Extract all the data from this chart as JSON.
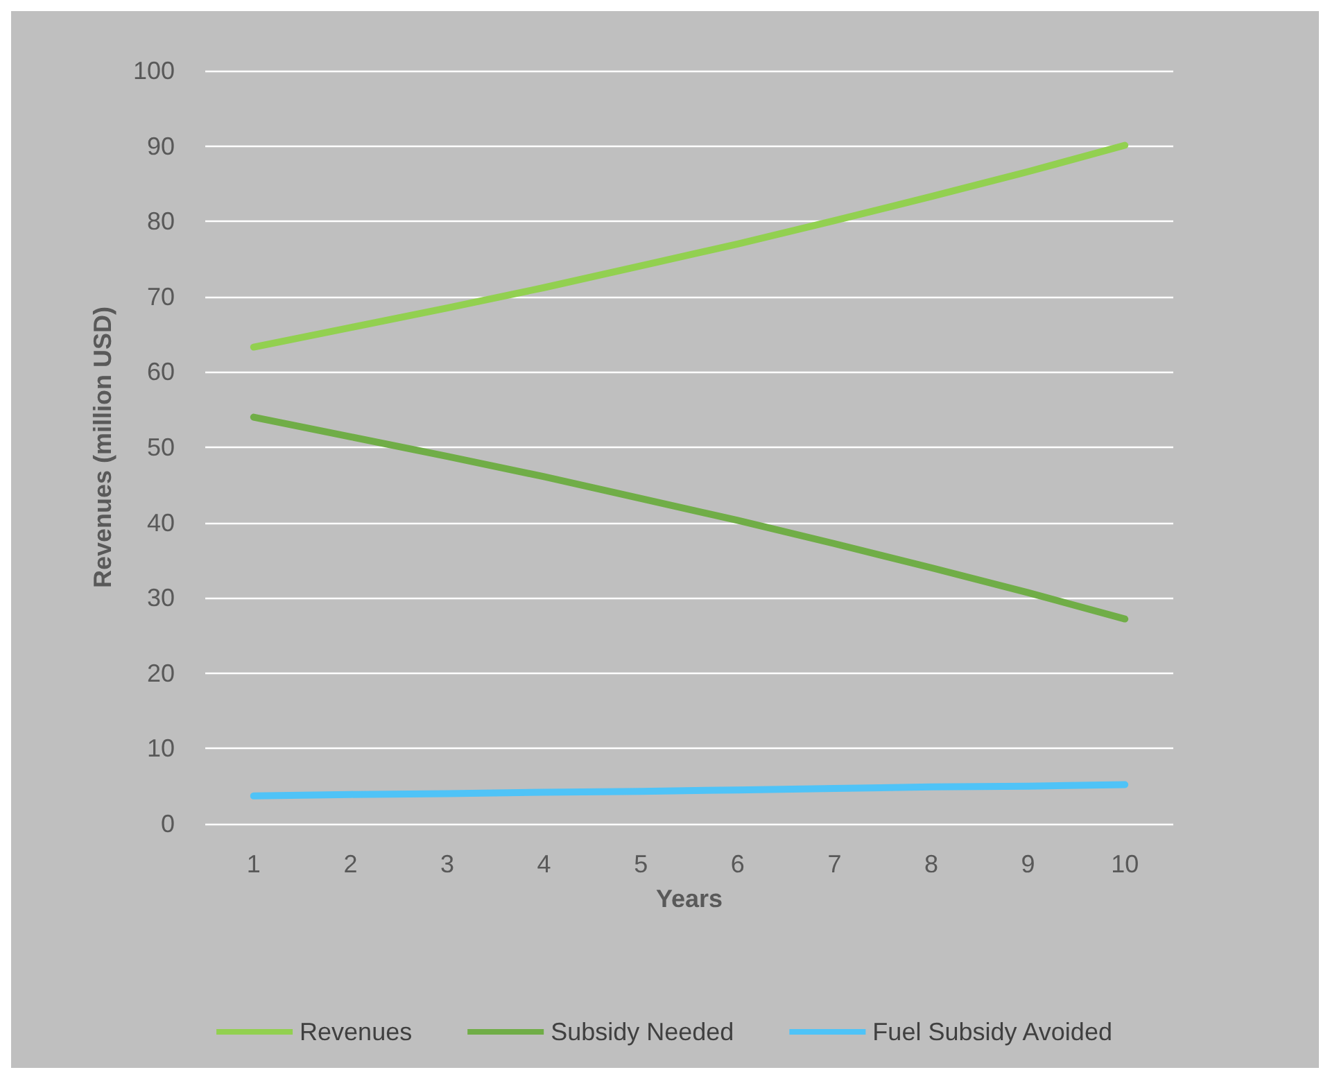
{
  "chart_data": {
    "type": "line",
    "xlabel": "Years",
    "ylabel": "Revenues (million USD)",
    "categories": [
      "1",
      "2",
      "3",
      "4",
      "5",
      "6",
      "7",
      "8",
      "9",
      "10"
    ],
    "series": [
      {
        "name": "Revenues",
        "color": "#92d050",
        "values": [
          63.3,
          65.9,
          68.5,
          71.2,
          74.1,
          77.0,
          80.1,
          83.3,
          86.6,
          90.1
        ]
      },
      {
        "name": "Subsidy Needed",
        "color": "#70ad47",
        "values": [
          54.0,
          51.4,
          48.8,
          46.1,
          43.2,
          40.3,
          37.2,
          34.0,
          30.7,
          27.2
        ]
      },
      {
        "name": "Fuel Subsidy Avoided",
        "color": "#4fc3f7",
        "values": [
          3.7,
          3.9,
          4.0,
          4.2,
          4.3,
          4.5,
          4.7,
          4.9,
          5.0,
          5.2
        ]
      }
    ],
    "ylim": [
      0,
      100
    ],
    "yticks": [
      0,
      10,
      20,
      30,
      40,
      50,
      60,
      70,
      80,
      90,
      100
    ],
    "grid": "y",
    "legend": "bottom",
    "marker": "none",
    "line_style": "solid"
  }
}
